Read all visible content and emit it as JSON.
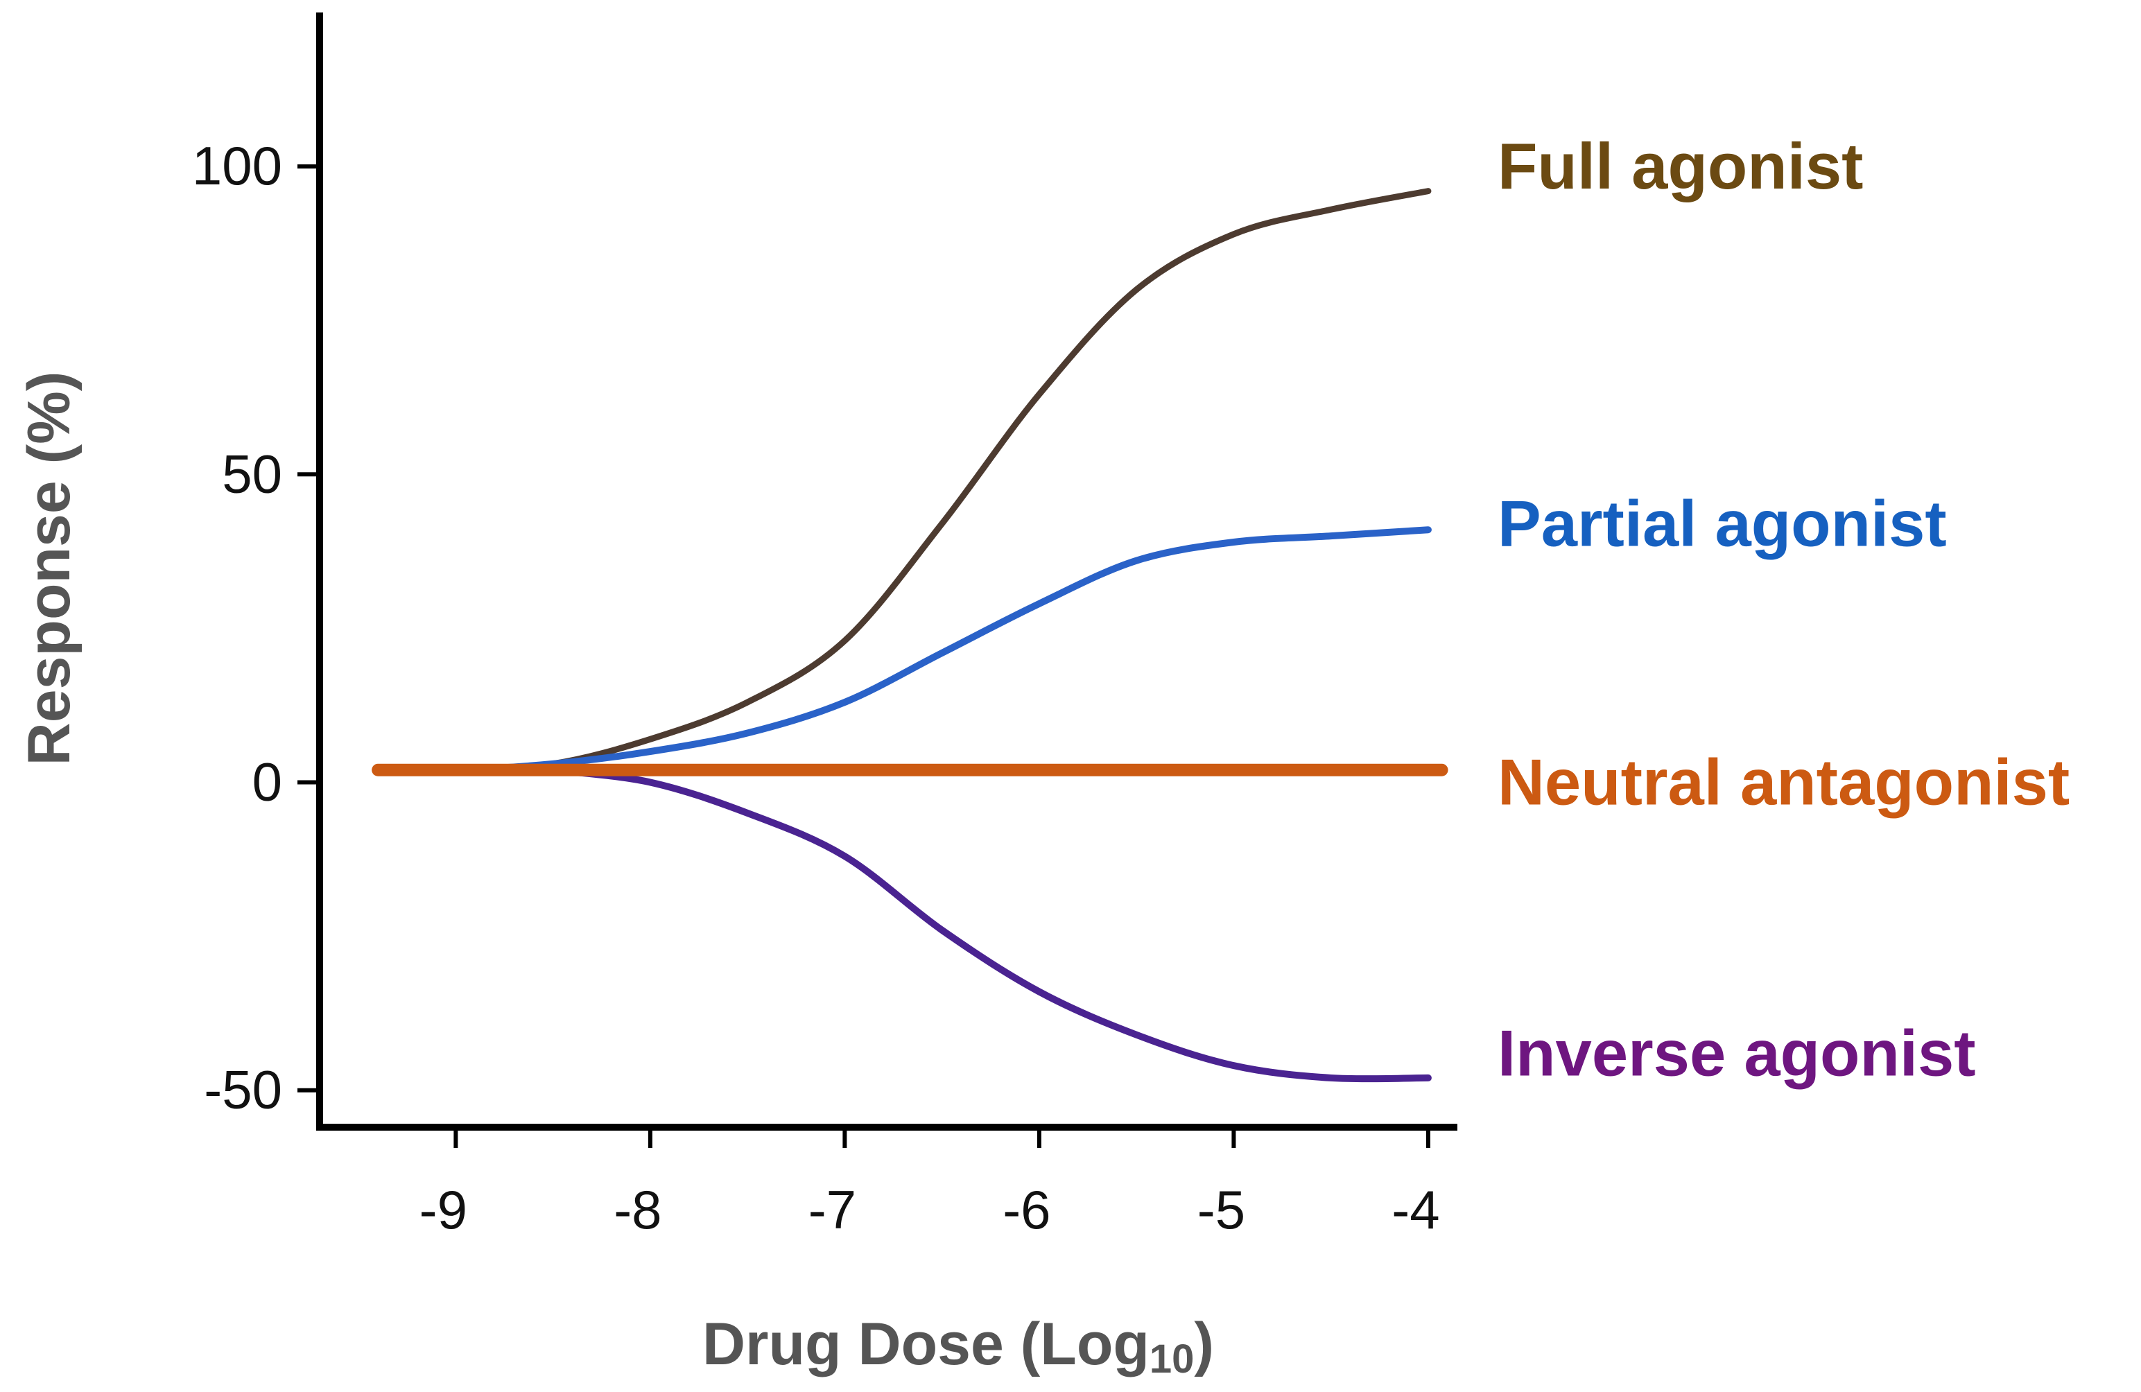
{
  "chart_data": {
    "type": "line",
    "title": "",
    "xlabel": "Drug Dose (Log",
    "xlabel_sub": "10",
    "xlabel_close": ")",
    "ylabel": "Response (%)",
    "xlim": [
      -9.7,
      -3.85
    ],
    "ylim": [
      -56,
      125
    ],
    "x_ticks": [
      {
        "value": -9,
        "label": "-9"
      },
      {
        "value": -8,
        "label": "-8"
      },
      {
        "value": -7,
        "label": "-7"
      },
      {
        "value": -6,
        "label": "-6"
      },
      {
        "value": -5,
        "label": "-5"
      },
      {
        "value": -4,
        "label": "-4"
      }
    ],
    "y_ticks": [
      {
        "value": 100,
        "label": "100"
      },
      {
        "value": 50,
        "label": "50"
      },
      {
        "value": 0,
        "label": "0"
      },
      {
        "value": -50,
        "label": "-50"
      }
    ],
    "grid": false,
    "legend": "inline-right",
    "series": [
      {
        "name": "Full agonist",
        "color": "#4d3b30",
        "label_color": "#6b4a12",
        "label_value": 100,
        "x": [
          -9.4,
          -9.0,
          -8.5,
          -8.0,
          -7.5,
          -7.0,
          -6.5,
          -6.0,
          -5.5,
          -5.0,
          -4.5,
          -4.0
        ],
        "y": [
          2,
          2,
          3,
          7,
          13,
          23,
          42,
          63,
          80,
          89,
          93,
          96
        ]
      },
      {
        "name": "Partial agonist",
        "color": "#2a62c8",
        "label_color": "#1660c0",
        "label_value": 42,
        "x": [
          -9.4,
          -9.0,
          -8.5,
          -8.0,
          -7.5,
          -7.0,
          -6.5,
          -6.0,
          -5.5,
          -5.0,
          -4.5,
          -4.0
        ],
        "y": [
          2,
          2,
          3,
          5,
          8,
          13,
          21,
          29,
          36,
          39,
          40,
          41
        ]
      },
      {
        "name": "Neutral antagonist",
        "color": "#cc5a12",
        "label_color": "#cc5a12",
        "label_value": 0,
        "x": [
          -9.4,
          -3.93
        ],
        "y": [
          2,
          2
        ]
      },
      {
        "name": "Inverse agonist",
        "color": "#4a2391",
        "label_color": "#6e1680",
        "label_value": -44,
        "x": [
          -8.5,
          -8.0,
          -7.5,
          -7.0,
          -6.5,
          -6.0,
          -5.5,
          -5.0,
          -4.5,
          -4.0
        ],
        "y": [
          2,
          0,
          -5,
          -12,
          -24,
          -34,
          -41,
          -46,
          -48,
          -48
        ]
      }
    ]
  }
}
